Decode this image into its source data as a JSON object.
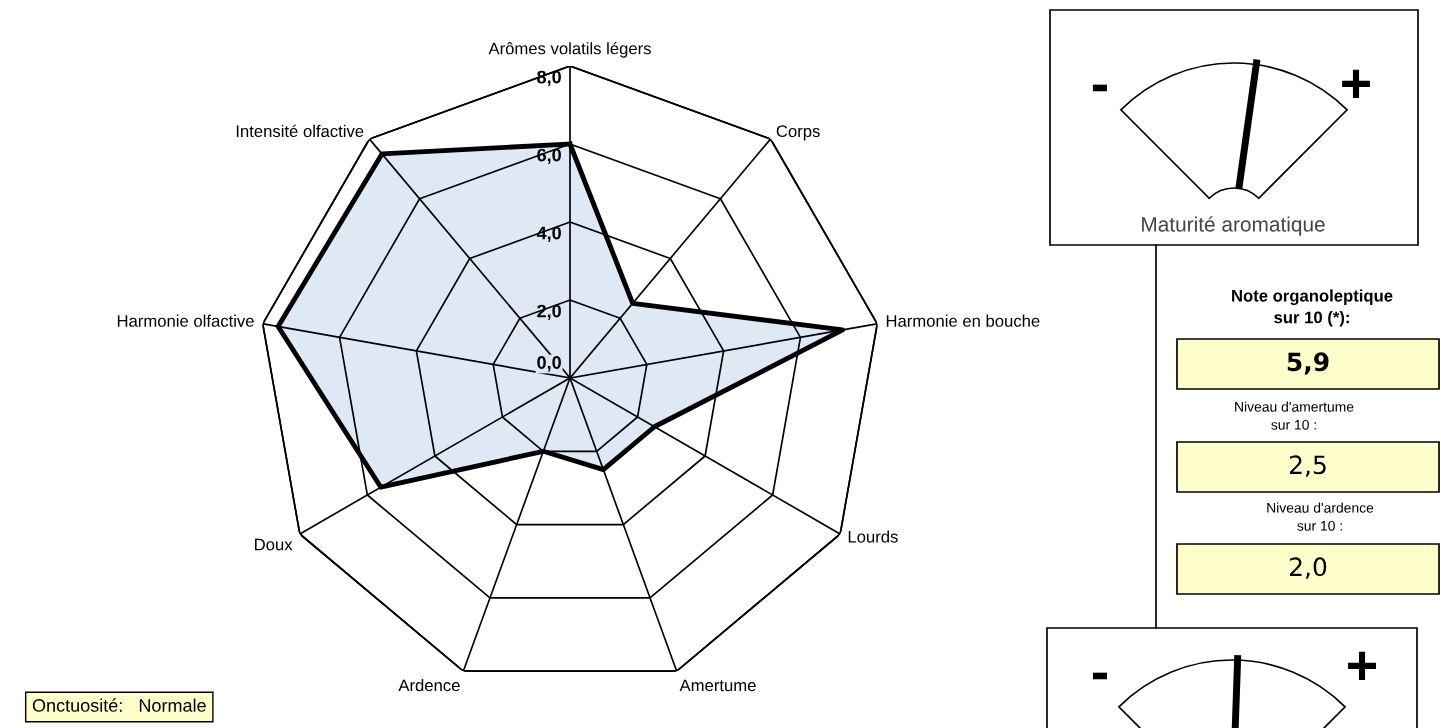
{
  "chart_data": [
    {
      "type": "radar",
      "categories": [
        "Arômes volatils légers",
        "Corps",
        "Harmonie en bouche",
        "Lourds",
        "Amertume",
        "Ardence",
        "Doux",
        "Harmonie olfactive",
        "Intensité olfactive"
      ],
      "series": [
        {
          "color": "#000000",
          "values": [
            6.0,
            2.5,
            7.1,
            2.5,
            2.5,
            2.0,
            5.6,
            7.6,
            7.5
          ]
        }
      ],
      "ylim": [
        0,
        8
      ],
      "yticks": [
        {
          "value": 0,
          "label": "0,0"
        },
        {
          "value": 2,
          "label": "2,0"
        },
        {
          "value": 4,
          "label": "4,0"
        },
        {
          "value": 6,
          "label": "6,0"
        },
        {
          "value": 8,
          "label": "8,0"
        }
      ],
      "grid": true,
      "annotations": [
        "Onctuosité:   Normale"
      ]
    },
    {
      "type": "other",
      "annotations": [
        "-",
        "+",
        "Maturité aromatique",
        "Note organoleptique\nsur 10 (*):",
        "5,9",
        "Niveau d'amertume\nsur 10 :",
        "2,5",
        "Niveau d'ardence\nsur 10 :",
        "2,0",
        "-",
        "+"
      ]
    }
  ]
}
